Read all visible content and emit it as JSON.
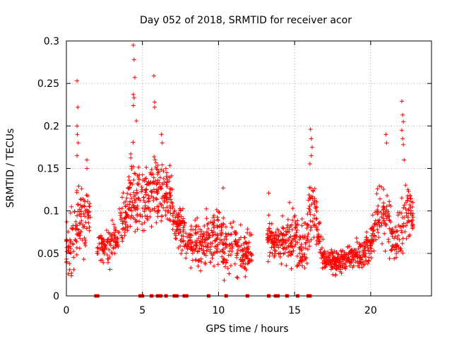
{
  "chart_data": {
    "type": "scatter",
    "title": "Day 052 of 2018, SRMTID for receiver acor",
    "xlabel": "GPS time / hours",
    "ylabel": "SRMTID / TECUs",
    "xlim": [
      0,
      24
    ],
    "ylim": [
      0,
      0.3
    ],
    "x_ticks": [
      0,
      5,
      10,
      15,
      20
    ],
    "x_tick_labels": [
      "0",
      "5",
      "10",
      "15",
      "20"
    ],
    "y_ticks": [
      0,
      0.05,
      0.1,
      0.15,
      0.2,
      0.25,
      0.3
    ],
    "y_tick_labels": [
      "0",
      "0.05",
      "0.1",
      "0.15",
      "0.2",
      "0.25",
      "0.3"
    ],
    "grid": true,
    "marker": "plus",
    "series_color": "#ff0000",
    "series": [
      {
        "name": "SRMTID",
        "profile_x": [
          0.0,
          0.3,
          0.6,
          0.9,
          1.2,
          1.5,
          1.8,
          2.2,
          2.6,
          3.0,
          3.4,
          3.8,
          4.1,
          4.4,
          4.7,
          5.0,
          5.3,
          5.6,
          5.9,
          6.2,
          6.5,
          6.8,
          7.1,
          7.4,
          7.7,
          8.0,
          8.5,
          9.0,
          9.5,
          10.0,
          10.5,
          11.0,
          11.5,
          12.0,
          13.3,
          13.8,
          14.2,
          14.6,
          15.0,
          15.4,
          15.8,
          16.1,
          16.4,
          16.8,
          17.2,
          17.6,
          18.0,
          18.5,
          19.0,
          19.5,
          20.0,
          20.4,
          20.8,
          21.1,
          21.4,
          21.7,
          22.0,
          22.3,
          22.6,
          22.8
        ],
        "profile_median": [
          0.05,
          0.06,
          0.08,
          0.09,
          0.08,
          0.1,
          0.06,
          0.06,
          0.06,
          0.06,
          0.07,
          0.09,
          0.1,
          0.13,
          0.12,
          0.11,
          0.11,
          0.13,
          0.12,
          0.13,
          0.12,
          0.12,
          0.09,
          0.08,
          0.07,
          0.06,
          0.06,
          0.06,
          0.07,
          0.07,
          0.06,
          0.06,
          0.05,
          0.05,
          0.07,
          0.06,
          0.06,
          0.07,
          0.07,
          0.05,
          0.07,
          0.11,
          0.09,
          0.05,
          0.04,
          0.04,
          0.04,
          0.045,
          0.05,
          0.05,
          0.06,
          0.08,
          0.11,
          0.1,
          0.07,
          0.06,
          0.08,
          0.1,
          0.1,
          0.08
        ],
        "profile_spread": [
          0.03,
          0.04,
          0.045,
          0.03,
          0.03,
          0.03,
          0.02,
          0.02,
          0.02,
          0.02,
          0.02,
          0.03,
          0.035,
          0.04,
          0.04,
          0.035,
          0.03,
          0.04,
          0.04,
          0.035,
          0.035,
          0.03,
          0.025,
          0.025,
          0.025,
          0.02,
          0.025,
          0.03,
          0.03,
          0.035,
          0.035,
          0.03,
          0.025,
          0.02,
          0.02,
          0.02,
          0.025,
          0.03,
          0.03,
          0.025,
          0.03,
          0.04,
          0.03,
          0.015,
          0.012,
          0.012,
          0.012,
          0.012,
          0.012,
          0.015,
          0.02,
          0.03,
          0.035,
          0.04,
          0.02,
          0.02,
          0.035,
          0.035,
          0.03,
          0.02
        ],
        "gaps_hours": [
          [
            1.6,
            2.0
          ],
          [
            12.2,
            13.2
          ]
        ],
        "peaks": [
          {
            "x": 0.7,
            "y": 0.253
          },
          {
            "x": 0.75,
            "y": 0.222
          },
          {
            "x": 0.7,
            "y": 0.2
          },
          {
            "x": 0.72,
            "y": 0.19
          },
          {
            "x": 0.78,
            "y": 0.18
          },
          {
            "x": 0.7,
            "y": 0.165
          },
          {
            "x": 1.35,
            "y": 0.16
          },
          {
            "x": 1.35,
            "y": 0.15
          },
          {
            "x": 4.4,
            "y": 0.295
          },
          {
            "x": 4.45,
            "y": 0.278
          },
          {
            "x": 4.5,
            "y": 0.257
          },
          {
            "x": 4.4,
            "y": 0.237
          },
          {
            "x": 4.45,
            "y": 0.233
          },
          {
            "x": 4.4,
            "y": 0.224
          },
          {
            "x": 4.6,
            "y": 0.206
          },
          {
            "x": 5.75,
            "y": 0.259
          },
          {
            "x": 5.8,
            "y": 0.228
          },
          {
            "x": 5.8,
            "y": 0.222
          },
          {
            "x": 6.25,
            "y": 0.19
          },
          {
            "x": 6.3,
            "y": 0.18
          },
          {
            "x": 10.3,
            "y": 0.127
          },
          {
            "x": 13.3,
            "y": 0.121
          },
          {
            "x": 16.05,
            "y": 0.196
          },
          {
            "x": 16.1,
            "y": 0.185
          },
          {
            "x": 16.15,
            "y": 0.175
          },
          {
            "x": 16.1,
            "y": 0.165
          },
          {
            "x": 21.0,
            "y": 0.19
          },
          {
            "x": 21.05,
            "y": 0.18
          },
          {
            "x": 22.05,
            "y": 0.229
          },
          {
            "x": 22.1,
            "y": 0.213
          },
          {
            "x": 22.15,
            "y": 0.205
          },
          {
            "x": 22.05,
            "y": 0.195
          },
          {
            "x": 22.1,
            "y": 0.185
          },
          {
            "x": 22.15,
            "y": 0.178
          },
          {
            "x": 22.2,
            "y": 0.16
          }
        ],
        "zero_markers_x": [
          1.95,
          2.05,
          4.85,
          5.0,
          5.6,
          6.0,
          6.2,
          6.55,
          7.1,
          7.25,
          7.75,
          7.9,
          9.35,
          10.5,
          11.9,
          13.3,
          13.75,
          13.9,
          14.5,
          15.2,
          15.9,
          16.0
        ]
      }
    ]
  }
}
